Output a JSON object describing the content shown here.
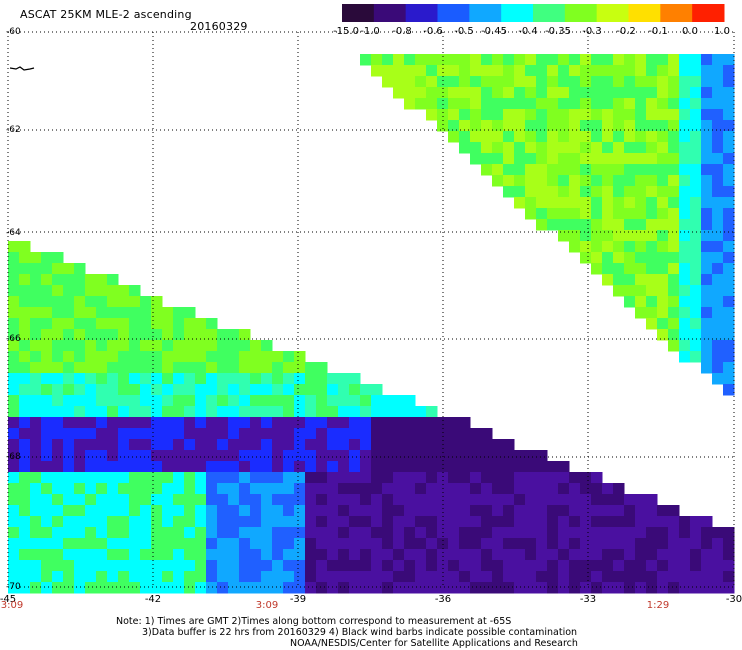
{
  "header": {
    "title": "ASCAT 25KM MLE-2 ascending",
    "date": "20160329"
  },
  "colorbar": {
    "tick_labels": [
      "-15.0",
      "-1.0",
      "-0.8",
      "-0.6",
      "-0.5",
      "-0.45",
      "-0.4",
      "-0.35",
      "-0.3",
      "-0.2",
      "-0.1",
      "0.0",
      "1.0"
    ],
    "colors": [
      "#2a0a3a",
      "#3a0a78",
      "#2a1acc",
      "#1a5cff",
      "#10a8ff",
      "#00ffff",
      "#40ff80",
      "#80ff20",
      "#c8ff10",
      "#ffe000",
      "#ff8000",
      "#ff2000"
    ]
  },
  "map": {
    "lat_labels": [
      "-60",
      "-62",
      "-64",
      "-66",
      "-68",
      "-70"
    ],
    "lon_labels": [
      "-45",
      "-42",
      "-39",
      "-36",
      "-33",
      "-30"
    ],
    "time_labels": [
      "3:09",
      "3:09",
      "1:29"
    ]
  },
  "notes": {
    "line1": "Note: 1) Times are GMT 2)Times along bottom correspond to measurement at -65S",
    "line2": "3)Data buffer is 22 hrs from 20160329 4) Black wind barbs indicate possible contamination",
    "line3": "NOAA/NESDIS/Center for Satellite Applications and Research"
  }
}
